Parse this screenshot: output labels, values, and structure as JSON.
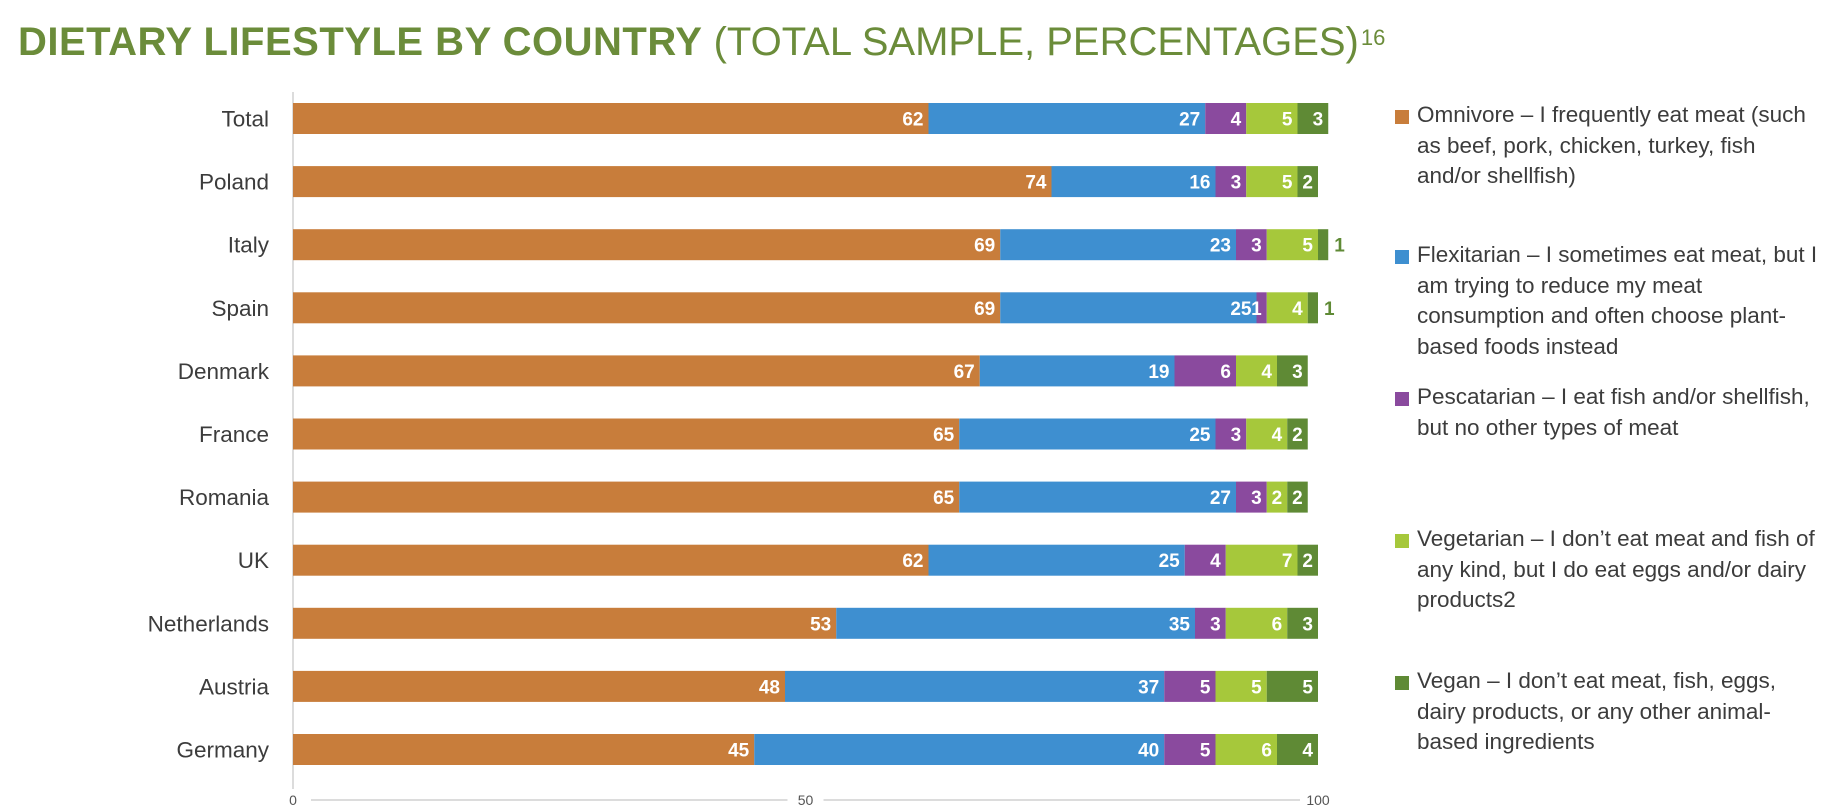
{
  "title": {
    "bold": "DIETARY LIFESTYLE BY COUNTRY",
    "normal": "(TOTAL SAMPLE, PERCENTAGES)",
    "footnote": "16"
  },
  "colors": {
    "title": "#6b8c3a",
    "omnivore": "#c87d3b",
    "flexitarian": "#3e8fd0",
    "pescatarian": "#8a4a9e",
    "vegetarian": "#a6c83b",
    "vegan": "#5f8a35",
    "label_inside": "#ffffff",
    "label_outside": "#5f8a35"
  },
  "legend": [
    {
      "key": "omnivore",
      "label": "Omnivore – I frequently eat meat (such as beef, pork, chicken, turkey, fish and/or shellfish)"
    },
    {
      "key": "flexitarian",
      "label": "Flexitarian – I sometimes eat meat, but I am trying to reduce my meat consumption and often choose plant-based foods instead"
    },
    {
      "key": "pescatarian",
      "label": "Pescatarian – I eat fish and/or shellfish, but no other types of meat"
    },
    {
      "key": "vegetarian",
      "label": "Vegetarian – I don’t eat meat and fish of any kind, but I do eat eggs and/or dairy products2"
    },
    {
      "key": "vegan",
      "label": "Vegan – I don’t eat meat, fish, eggs, dairy products, or any other animal-based ingredients"
    }
  ],
  "chart_data": {
    "type": "bar",
    "orientation": "horizontal",
    "stacked": true,
    "title": "DIETARY LIFESTYLE BY COUNTRY (TOTAL SAMPLE, PERCENTAGES)",
    "xlabel": "",
    "ylabel": "",
    "xlim": [
      0,
      100
    ],
    "xticks": [
      0,
      50,
      100
    ],
    "grid": false,
    "legend_position": "right",
    "categories": [
      "Total",
      "Poland",
      "Italy",
      "Spain",
      "Denmark",
      "France",
      "Romania",
      "UK",
      "Netherlands",
      "Austria",
      "Germany"
    ],
    "series": [
      {
        "name": "Omnivore",
        "key": "omnivore",
        "values": [
          62,
          74,
          69,
          69,
          67,
          65,
          65,
          62,
          53,
          48,
          45
        ]
      },
      {
        "name": "Flexitarian",
        "key": "flexitarian",
        "values": [
          27,
          16,
          23,
          25,
          19,
          25,
          27,
          25,
          35,
          37,
          40
        ]
      },
      {
        "name": "Pescatarian",
        "key": "pescatarian",
        "values": [
          4,
          3,
          3,
          1,
          6,
          3,
          3,
          4,
          3,
          5,
          5
        ]
      },
      {
        "name": "Vegetarian",
        "key": "vegetarian",
        "values": [
          5,
          5,
          5,
          4,
          4,
          4,
          2,
          7,
          6,
          5,
          6
        ]
      },
      {
        "name": "Vegan",
        "key": "vegan",
        "values": [
          3,
          2,
          1,
          1,
          3,
          2,
          2,
          2,
          3,
          5,
          4
        ]
      }
    ]
  }
}
